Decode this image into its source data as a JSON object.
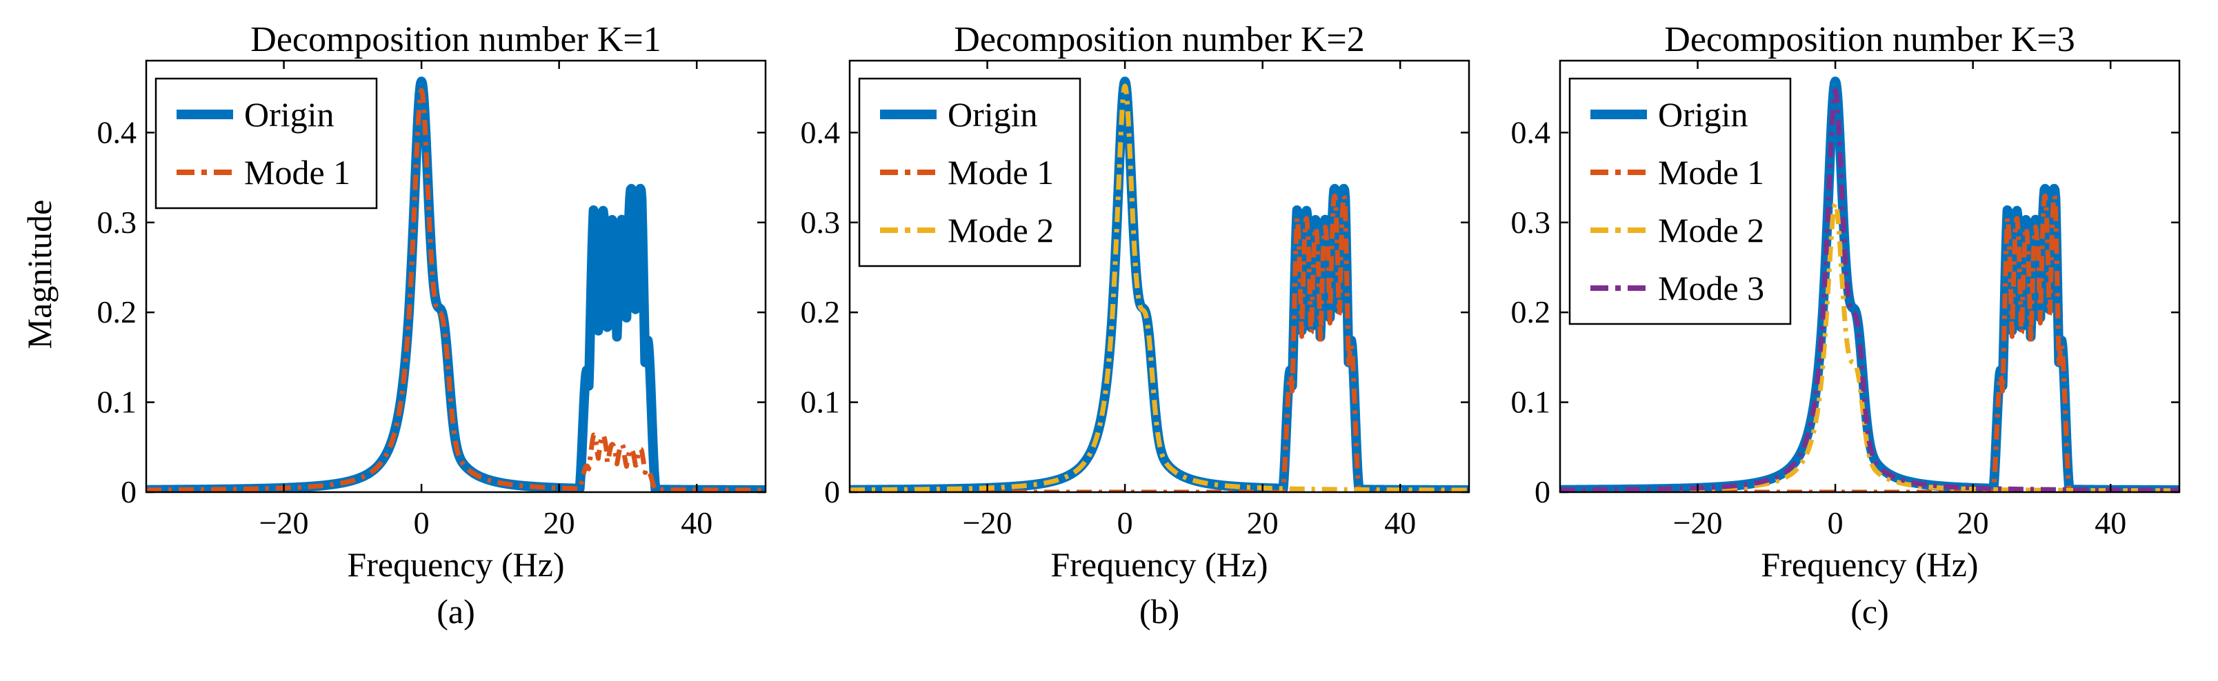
{
  "figure": {
    "ylabel": "Magnitude"
  },
  "chart_data": [
    {
      "type": "line",
      "panel_caption": "(a)",
      "title": "Decomposition number K=1",
      "xlabel": "Frequency (Hz)",
      "ylabel": "Magnitude",
      "xlim": [
        -40,
        50
      ],
      "ylim": [
        0,
        0.48
      ],
      "xticks": [
        -20,
        0,
        20,
        40
      ],
      "xtick_labels": [
        "−20",
        "0",
        "20",
        "40"
      ],
      "yticks": [
        0,
        0.1,
        0.2,
        0.3,
        0.4
      ],
      "ytick_labels": [
        "0",
        "0.1",
        "0.2",
        "0.3",
        "0.4"
      ],
      "legend": [
        "Origin",
        "Mode 1"
      ],
      "legend_position": "top-left",
      "series": [
        {
          "name": "Origin",
          "style": "solid",
          "color": "#0072BD",
          "x_range": [
            -40,
            50
          ],
          "low_peak_height": 0.455,
          "high_band_peaks": [
            0.31,
            0.3,
            0.335
          ]
        },
        {
          "name": "Mode 1",
          "style": "dash-dot",
          "color": "#D95319",
          "x_range": [
            -40,
            50
          ],
          "low_peak_height": 0.445,
          "high_band_peaks": [
            0.06,
            0.05,
            0.045
          ]
        }
      ]
    },
    {
      "type": "line",
      "panel_caption": "(b)",
      "title": "Decomposition number K=2",
      "xlabel": "Frequency (Hz)",
      "ylabel": "",
      "xlim": [
        -40,
        50
      ],
      "ylim": [
        0,
        0.48
      ],
      "xticks": [
        -20,
        0,
        20,
        40
      ],
      "xtick_labels": [
        "−20",
        "0",
        "20",
        "40"
      ],
      "yticks": [
        0,
        0.1,
        0.2,
        0.3,
        0.4
      ],
      "ytick_labels": [
        "0",
        "0.1",
        "0.2",
        "0.3",
        "0.4"
      ],
      "legend": [
        "Origin",
        "Mode 1",
        "Mode 2"
      ],
      "legend_position": "top-left",
      "series": [
        {
          "name": "Origin",
          "style": "solid",
          "color": "#0072BD",
          "low_peak_height": 0.455,
          "high_band_peaks": [
            0.31,
            0.3,
            0.335
          ]
        },
        {
          "name": "Mode 1",
          "style": "dash-dot",
          "color": "#D95319",
          "low_peak_height": 0.0,
          "high_band_peaks": [
            0.305,
            0.295,
            0.33
          ]
        },
        {
          "name": "Mode 2",
          "style": "dash-dot",
          "color": "#EDB120",
          "low_peak_height": 0.45,
          "high_band_peaks": [
            0.0,
            0.0,
            0.0
          ]
        }
      ]
    },
    {
      "type": "line",
      "panel_caption": "(c)",
      "title": "Decomposition number K=3",
      "xlabel": "Frequency (Hz)",
      "ylabel": "",
      "xlim": [
        -40,
        50
      ],
      "ylim": [
        0,
        0.48
      ],
      "xticks": [
        -20,
        0,
        20,
        40
      ],
      "xtick_labels": [
        "−20",
        "0",
        "20",
        "40"
      ],
      "yticks": [
        0,
        0.1,
        0.2,
        0.3,
        0.4
      ],
      "ytick_labels": [
        "0",
        "0.1",
        "0.2",
        "0.3",
        "0.4"
      ],
      "legend": [
        "Origin",
        "Mode 1",
        "Mode 2",
        "Mode 3"
      ],
      "legend_position": "top-left",
      "series": [
        {
          "name": "Origin",
          "style": "solid",
          "color": "#0072BD",
          "low_peak_height": 0.455,
          "high_band_peaks": [
            0.31,
            0.3,
            0.335
          ]
        },
        {
          "name": "Mode 1",
          "style": "dash-dot",
          "color": "#D95319",
          "low_peak_height": 0.0,
          "high_band_peaks": [
            0.305,
            0.295,
            0.33
          ]
        },
        {
          "name": "Mode 2",
          "style": "dash-dot",
          "color": "#EDB120",
          "low_peak_height": 0.32,
          "high_band_peaks": [
            0.0,
            0.0,
            0.0
          ]
        },
        {
          "name": "Mode 3",
          "style": "dash-dot",
          "color": "#7E2F8E",
          "low_peak_height": 0.445,
          "high_band_peaks": [
            0.0,
            0.0,
            0.0
          ]
        }
      ]
    }
  ]
}
